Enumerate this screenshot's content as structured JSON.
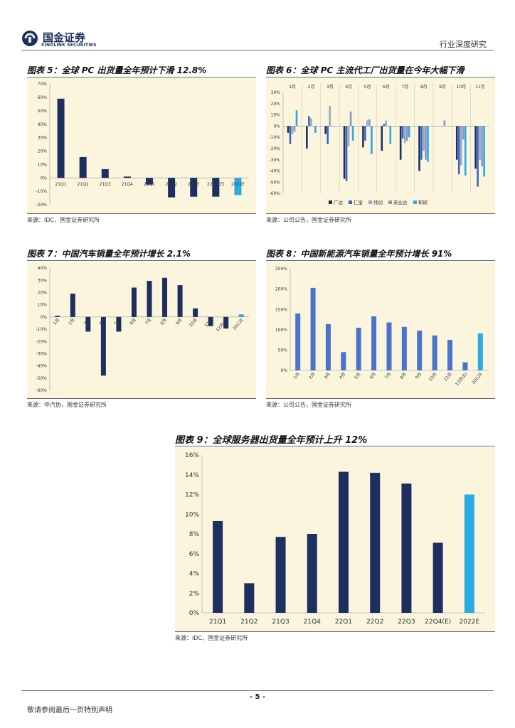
{
  "header": {
    "logo_cn": "国金证券",
    "logo_en": "SINOLINK SECURITIES",
    "report_type": "行业深度研究"
  },
  "footer": {
    "page_number": "- 5 -",
    "disclaimer": "敬请参阅最后一页特别声明"
  },
  "colors": {
    "bar_dark": "#1c2f5f",
    "bar_highlight": "#29abe2",
    "bar_blue": "#4a73cc",
    "panel_bg": "#fbf5de",
    "series": [
      "#1c2f5f",
      "#3b64c6",
      "#9aa6c4",
      "#8598b8",
      "#29abe2"
    ]
  },
  "chart_data": [
    {
      "id": "fig5",
      "type": "bar",
      "title": "图表 5：全球 PC 出货量全年预计下滑 12.8%",
      "source": "来源：IDC，国金证券研究所",
      "categories": [
        "21Q1",
        "21Q2",
        "21Q3",
        "21Q4",
        "22Q1",
        "22Q2",
        "22Q3",
        "22Q4(E)",
        "2022E"
      ],
      "values": [
        59,
        15.5,
        6.5,
        1,
        -5,
        -14.5,
        -14,
        -14,
        -12.8
      ],
      "highlight_last": true,
      "yticks": [
        "70%",
        "60%",
        "50%",
        "40%",
        "30%",
        "20%",
        "10%",
        "0%",
        "-10%",
        "-20%"
      ],
      "ylim": [
        -20,
        70
      ]
    },
    {
      "id": "fig6",
      "type": "bar",
      "title": "图表 6：全球 PC 主流代工厂出货量在今年大幅下滑",
      "source": "来源：公司公告，国金证券研究所",
      "categories": [
        "1月",
        "2月",
        "3月",
        "4月",
        "5月",
        "6月",
        "7月",
        "8月",
        "9月",
        "10月",
        "11月"
      ],
      "series": [
        {
          "name": "广达",
          "values": [
            -6,
            -20,
            -7,
            -47,
            -19,
            -22,
            -30,
            -40,
            null,
            -30,
            -38
          ]
        },
        {
          "name": "仁宝",
          "values": [
            -16,
            9,
            -16,
            -49,
            -13,
            2,
            -11,
            -30,
            null,
            -43,
            -54
          ]
        },
        {
          "name": "纬创",
          "values": [
            -7,
            7,
            18,
            -18,
            5,
            5,
            -15,
            -22,
            null,
            -35,
            -30
          ]
        },
        {
          "name": "英业达",
          "values": [
            -5,
            0,
            0,
            13,
            6,
            0,
            -13,
            -30,
            5,
            -12,
            -36
          ]
        },
        {
          "name": "和硕",
          "values": [
            14,
            -6,
            0,
            -13,
            -25,
            -16,
            -10,
            -32,
            null,
            -44,
            -45
          ]
        }
      ],
      "yticks": [
        "30%",
        "20%",
        "10%",
        "0%",
        "-10%",
        "-20%",
        "-30%",
        "-40%",
        "-50%",
        "-60%"
      ],
      "ylim": [
        -60,
        30
      ]
    },
    {
      "id": "fig7",
      "type": "bar",
      "title": "图表 7：中国汽车销量全年预计增长 2.1%",
      "source": "来源：中汽协，国金证券研究所",
      "categories": [
        "1月",
        "2月",
        "3月",
        "4月",
        "5月",
        "6月",
        "7月",
        "8月",
        "9月",
        "10月",
        "11月",
        "12月(E)",
        "2022E"
      ],
      "values": [
        1,
        19,
        -12,
        -48,
        -12,
        24,
        29.5,
        32,
        26,
        7,
        -7.5,
        -9.5,
        2.1
      ],
      "highlight_last": true,
      "yticks": [
        "40%",
        "30%",
        "20%",
        "10%",
        "0%",
        "-10%",
        "-20%",
        "-30%",
        "-40%",
        "-50%",
        "-60%"
      ],
      "ylim": [
        -60,
        40
      ]
    },
    {
      "id": "fig8",
      "type": "bar",
      "title": "图表 8：中国新能源汽车销量全年预计增长 91%",
      "source": "来源：公司公告，国金证券研究所",
      "categories": [
        "1月",
        "2月",
        "3月",
        "4月",
        "5月",
        "6月",
        "7月",
        "8月",
        "9月",
        "10月",
        "11月",
        "12月(E)",
        "2022E"
      ],
      "values": [
        140,
        203,
        114,
        45,
        105,
        133,
        118,
        107,
        98,
        86,
        75,
        20,
        91
      ],
      "highlight_last": true,
      "yticks": [
        "250%",
        "200%",
        "150%",
        "100%",
        "50%",
        "0%"
      ],
      "ylim": [
        0,
        250
      ]
    },
    {
      "id": "fig9",
      "type": "bar",
      "title": "图表 9：全球服务器出货量全年预计上升 12%",
      "source": "来源：IDC，国金证券研究所",
      "categories": [
        "21Q1",
        "21Q2",
        "21Q3",
        "21Q4",
        "22Q1",
        "22Q2",
        "22Q3",
        "22Q4(E)",
        "2022E"
      ],
      "values": [
        9.3,
        3,
        7.7,
        8,
        14.3,
        14.2,
        13.1,
        7.1,
        12
      ],
      "highlight_last": true,
      "yticks": [
        "16%",
        "14%",
        "12%",
        "10%",
        "8%",
        "6%",
        "4%",
        "2%",
        "0%"
      ],
      "ylim": [
        0,
        16
      ]
    }
  ]
}
